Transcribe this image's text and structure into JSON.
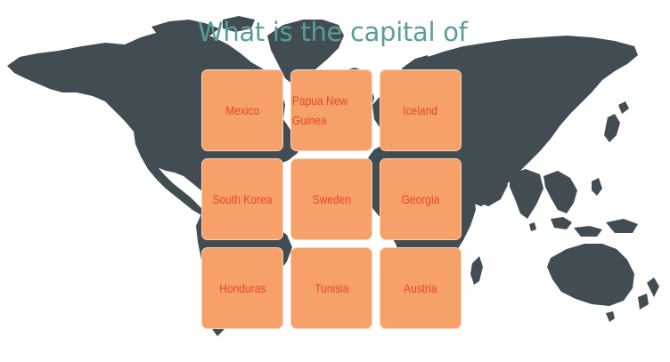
{
  "question": {
    "text": "What is the capital of"
  },
  "cards": [
    {
      "label": "Mexico"
    },
    {
      "label": "Papua New Guinea"
    },
    {
      "label": "Iceland"
    },
    {
      "label": "South Korea"
    },
    {
      "label": "Sweden"
    },
    {
      "label": "Georgia"
    },
    {
      "label": "Honduras"
    },
    {
      "label": "Tunisia"
    },
    {
      "label": "Austria"
    }
  ],
  "colors": {
    "map": "#414d53",
    "title": "#5a9e9a",
    "card_fill": "#f6a06a",
    "card_text": "#e44a27"
  }
}
